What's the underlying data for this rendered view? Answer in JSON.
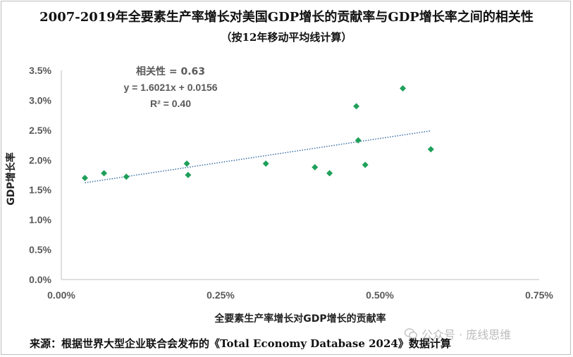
{
  "title": "2007-2019年全要素生产率增长对美国GDP增长的贡献率与GDP增长率之间的相关性",
  "subtitle": "（按12年移动平均线计算）",
  "source": "来源：根据世界大型企业联合会发布的《Total Economy Database 2024》数据计算",
  "watermark": "公众号 · 庞线思维",
  "annotation": {
    "line1": "相关性 = 0.63",
    "line2": "y = 1.6021x + 0.0156",
    "line3": "R² = 0.40"
  },
  "chart_data": {
    "type": "scatter",
    "title": "2007-2019年全要素生产率增长对美国GDP增长的贡献率与GDP增长率之间的相关性",
    "subtitle": "（按12年移动平均线计算）",
    "xlabel": "全要素生产率增长对GDP增长的贡献率",
    "ylabel": "GDP增长率",
    "xlim": [
      0,
      0.0075
    ],
    "ylim": [
      0,
      0.035
    ],
    "x_ticks": [
      "0.00%",
      "0.25%",
      "0.50%",
      "0.75%"
    ],
    "y_ticks": [
      "0.0%",
      "0.5%",
      "1.0%",
      "1.5%",
      "2.0%",
      "2.5%",
      "3.0%",
      "3.5%"
    ],
    "grid": false,
    "marker_color": "#1fa05a",
    "trendline_color": "#3b6ea5",
    "trendline": {
      "slope": 1.6021,
      "intercept": 0.0156,
      "r_squared": 0.4,
      "correlation": 0.63
    },
    "points": [
      {
        "x": 0.00037,
        "y": 0.017
      },
      {
        "x": 0.00067,
        "y": 0.0178
      },
      {
        "x": 0.00102,
        "y": 0.0172
      },
      {
        "x": 0.00197,
        "y": 0.0194
      },
      {
        "x": 0.00199,
        "y": 0.0175
      },
      {
        "x": 0.00321,
        "y": 0.0194
      },
      {
        "x": 0.00398,
        "y": 0.0188
      },
      {
        "x": 0.00421,
        "y": 0.0178
      },
      {
        "x": 0.00463,
        "y": 0.029
      },
      {
        "x": 0.00466,
        "y": 0.0233
      },
      {
        "x": 0.00477,
        "y": 0.0192
      },
      {
        "x": 0.00536,
        "y": 0.032
      },
      {
        "x": 0.0058,
        "y": 0.0218
      }
    ]
  }
}
